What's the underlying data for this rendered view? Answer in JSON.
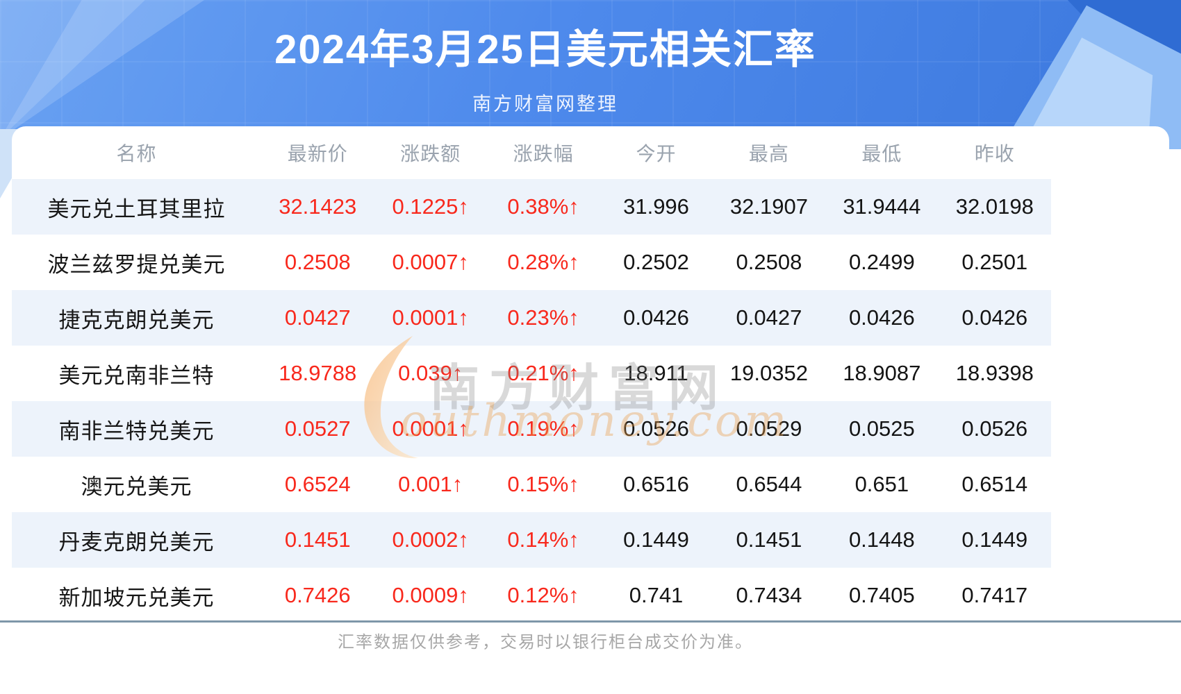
{
  "header": {
    "title": "2024年3月25日美元相关汇率",
    "subtitle": "南方财富网整理"
  },
  "chart_data": {
    "type": "table",
    "title": "2024年3月25日美元相关汇率",
    "subtitle": "南方财富网整理",
    "columns": [
      "名称",
      "最新价",
      "涨跌额",
      "涨跌幅",
      "今开",
      "最高",
      "最低",
      "昨收"
    ],
    "rows": [
      [
        "美元兑土耳其里拉",
        "32.1423",
        "0.1225↑",
        "0.38%↑",
        "31.996",
        "32.1907",
        "31.9444",
        "32.0198"
      ],
      [
        "波兰兹罗提兑美元",
        "0.2508",
        "0.0007↑",
        "0.28%↑",
        "0.2502",
        "0.2508",
        "0.2499",
        "0.2501"
      ],
      [
        "捷克克朗兑美元",
        "0.0427",
        "0.0001↑",
        "0.23%↑",
        "0.0426",
        "0.0427",
        "0.0426",
        "0.0426"
      ],
      [
        "美元兑南非兰特",
        "18.9788",
        "0.039↑",
        "0.21%↑",
        "18.911",
        "19.0352",
        "18.9087",
        "18.9398"
      ],
      [
        "南非兰特兑美元",
        "0.0527",
        "0.0001↑",
        "0.19%↑",
        "0.0526",
        "0.0529",
        "0.0525",
        "0.0526"
      ],
      [
        "澳元兑美元",
        "0.6524",
        "0.001↑",
        "0.15%↑",
        "0.6516",
        "0.6544",
        "0.651",
        "0.6514"
      ],
      [
        "丹麦克朗兑美元",
        "0.1451",
        "0.0002↑",
        "0.14%↑",
        "0.1449",
        "0.1451",
        "0.1448",
        "0.1449"
      ],
      [
        "新加坡元兑美元",
        "0.7426",
        "0.0009↑",
        "0.12%↑",
        "0.741",
        "0.7434",
        "0.7405",
        "0.7417"
      ]
    ],
    "up_columns": [
      1,
      2,
      3
    ],
    "grid": false,
    "stripe_rows": "odd"
  },
  "watermark": {
    "cn": "南方财富网",
    "en": "outhmoney.com"
  },
  "footer": {
    "disclaimer": "汇率数据仅供参考，交易时以银行柜台成交价为准。"
  },
  "colors": {
    "banner_blue": "#4e8aec",
    "banner_blue_dark": "#2f6cd3",
    "banner_blue_light": "#8fbcf5",
    "up_red": "#f8281c",
    "row_stripe": "#edf3fb",
    "header_text": "#9aa3ae",
    "body_text": "#141414",
    "divider": "#7e96a9",
    "footer_text": "#a7a7a7",
    "watermark_orange": "#e99e4a"
  }
}
